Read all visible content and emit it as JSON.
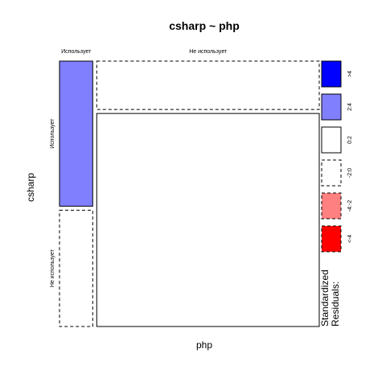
{
  "chart_data": {
    "type": "mosaic",
    "title": "csharp ~ php",
    "xlabel": "php",
    "ylabel": "csharp",
    "column_levels": [
      "Использует",
      "Не использует"
    ],
    "row_levels": [
      "Использует",
      "Не использует"
    ],
    "column_proportions": [
      0.13,
      0.87
    ],
    "cells": [
      {
        "php": "Использует",
        "csharp": "Использует",
        "row_fraction": 0.555,
        "shading": "2:4"
      },
      {
        "php": "Использует",
        "csharp": "Не использует",
        "row_fraction": 0.445,
        "shading": "-2:0"
      },
      {
        "php": "Не использует",
        "csharp": "Использует",
        "row_fraction": 0.185,
        "shading": "-2:0"
      },
      {
        "php": "Не использует",
        "csharp": "Не использует",
        "row_fraction": 0.815,
        "shading": "0:2"
      }
    ],
    "legend": {
      "title_lines": [
        "Standardized",
        "Residuals:"
      ],
      "placement": "right",
      "entries": [
        {
          "label": ">4",
          "fill": "#0000ff",
          "dashed": false
        },
        {
          "label": "2:4",
          "fill": "#8080ff",
          "dashed": false
        },
        {
          "label": "0:2",
          "fill": "#ffffff",
          "dashed": false
        },
        {
          "label": "-2:0",
          "fill": "#ffffff",
          "dashed": true
        },
        {
          "label": "-4:-2",
          "fill": "#ff8080",
          "dashed": true
        },
        {
          "label": "<-4",
          "fill": "#ff0000",
          "dashed": true
        }
      ]
    }
  }
}
